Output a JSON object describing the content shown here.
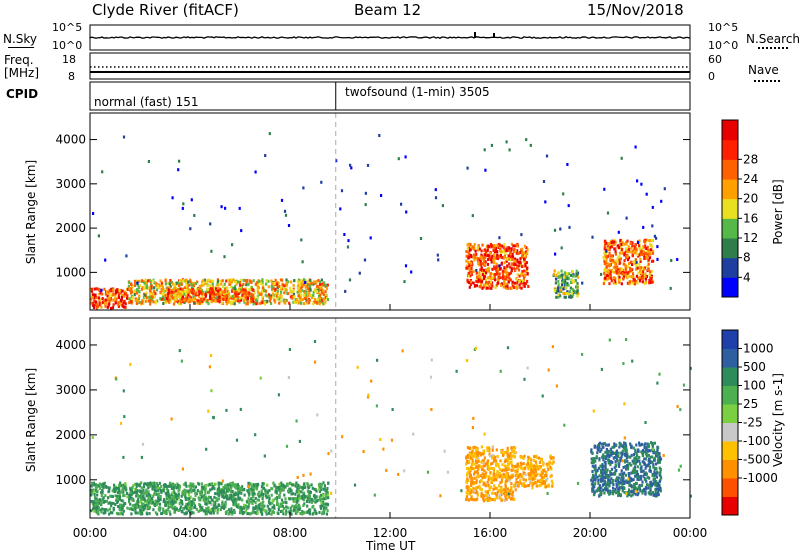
{
  "header": {
    "station": "Clyde River (fitACF)",
    "beam": "Beam 12",
    "date": "15/Nov/2018"
  },
  "strips": {
    "nsky_label": "N.Sky",
    "nsky_ticks": [
      "10^5",
      "10^0"
    ],
    "nsearch_label": "N.Search",
    "nsearch_ticks": [
      "10^5",
      "10^0"
    ],
    "freq_label_1": "Freq.",
    "freq_label_2": "[MHz]",
    "freq_ticks": [
      "18",
      "8"
    ],
    "nave_label": "Nave",
    "nave_ticks": [
      "60",
      "0"
    ],
    "cpid_label": "CPID",
    "cpid_modes": [
      {
        "label": "normal (fast) 151"
      },
      {
        "label": "twofsound (1-min) 3505"
      }
    ]
  },
  "chart_data": [
    {
      "type": "heatmap",
      "panel": "power",
      "ylabel": "Slant Range [km]",
      "yticks": [
        "1000",
        "2000",
        "3000",
        "4000"
      ],
      "colorbar_label": "Power [dB]",
      "colorbar_ticks": [
        "4",
        "8",
        "12",
        "16",
        "20",
        "24",
        "28"
      ],
      "colorbar_colors": [
        "#0000ff",
        "#1f3fa0",
        "#2e7d4a",
        "#55b848",
        "#e8e020",
        "#ffa000",
        "#ff6000",
        "#ff2000",
        "#e80000"
      ],
      "regions": [
        {
          "t0": 0.0,
          "t1": 1.5,
          "r0": 150,
          "r1": 600,
          "level": 28
        },
        {
          "t0": 1.5,
          "t1": 9.5,
          "r0": 250,
          "r1": 800,
          "level": 20
        },
        {
          "t0": 3.0,
          "t1": 6.5,
          "r0": 300,
          "r1": 600,
          "level": 26
        },
        {
          "t0": 15.0,
          "t1": 17.5,
          "r0": 600,
          "r1": 1600,
          "level": 28
        },
        {
          "t0": 18.5,
          "t1": 19.5,
          "r0": 400,
          "r1": 1000,
          "level": 14
        },
        {
          "t0": 20.5,
          "t1": 22.5,
          "r0": 700,
          "r1": 1700,
          "level": 26
        }
      ]
    },
    {
      "type": "heatmap",
      "panel": "velocity",
      "ylabel": "Slant Range [km]",
      "yticks": [
        "1000",
        "2000",
        "3000",
        "4000"
      ],
      "colorbar_label": "Velocity [m s-1]",
      "colorbar_ticks": [
        "1000",
        "500",
        "100",
        "25",
        "-25",
        "-100",
        "-500",
        "-1000"
      ],
      "colorbar_colors": [
        "#1f3faa",
        "#2e5fa0",
        "#2e8c5a",
        "#4caf50",
        "#7ad040",
        "#c8c8c8",
        "#ffc000",
        "#ff9000",
        "#ff5000",
        "#e80000"
      ],
      "regions": [
        {
          "t0": 0.0,
          "t1": 9.5,
          "r0": 200,
          "r1": 900,
          "level": 100
        },
        {
          "t0": 15.0,
          "t1": 17.0,
          "r0": 500,
          "r1": 1700,
          "level": -100
        },
        {
          "t0": 17.0,
          "t1": 18.5,
          "r0": 800,
          "r1": 1500,
          "level": -100
        },
        {
          "t0": 20.0,
          "t1": 22.8,
          "r0": 600,
          "r1": 1800,
          "level": 500
        }
      ]
    }
  ],
  "xaxis": {
    "ticks": [
      "00:00",
      "04:00",
      "08:00",
      "12:00",
      "16:00",
      "20:00",
      "00:00"
    ],
    "label": "Time UT"
  }
}
